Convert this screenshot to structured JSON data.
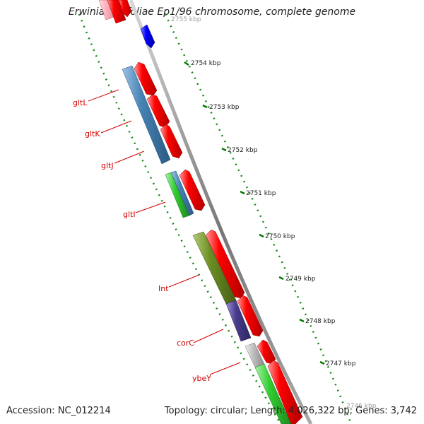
{
  "title": "Erwinia pyrifoliae Ep1/96 chromosome, complete genome",
  "footer": {
    "accession": "Accession: NC_012214",
    "topology": "Topology: circular; Length: 4,026,322 bp; Genes: 3,742"
  },
  "scale": {
    "unit": "kbp",
    "ticks": [
      {
        "label": "2755 kbp",
        "faded": true
      },
      {
        "label": "2754 kbp"
      },
      {
        "label": "2753 kbp"
      },
      {
        "label": "2752 kbp"
      },
      {
        "label": "2751 kbp"
      },
      {
        "label": "2750 kbp"
      },
      {
        "label": "2749 kbp"
      },
      {
        "label": "2748 kbp"
      },
      {
        "label": "2747 kbp"
      },
      {
        "label": "2746 kbp",
        "faded": true
      }
    ]
  },
  "genes": [
    {
      "name": "gltL"
    },
    {
      "name": "gltK"
    },
    {
      "name": "gltJ"
    },
    {
      "name": "gltI"
    },
    {
      "name": "Int"
    },
    {
      "name": "corC"
    },
    {
      "name": "ybeY"
    }
  ],
  "colors": {
    "red": "#ff0000",
    "blue": "#0000ff",
    "steelblue": "#4682b4",
    "green": "#32cd32",
    "olive": "#6b8e23",
    "slate": "#483d8b",
    "gray": "#c0c0c0",
    "pink": "#ffb6c1",
    "tick_green": "#007700",
    "backbone": "#888888",
    "label_red": "#d00000"
  }
}
